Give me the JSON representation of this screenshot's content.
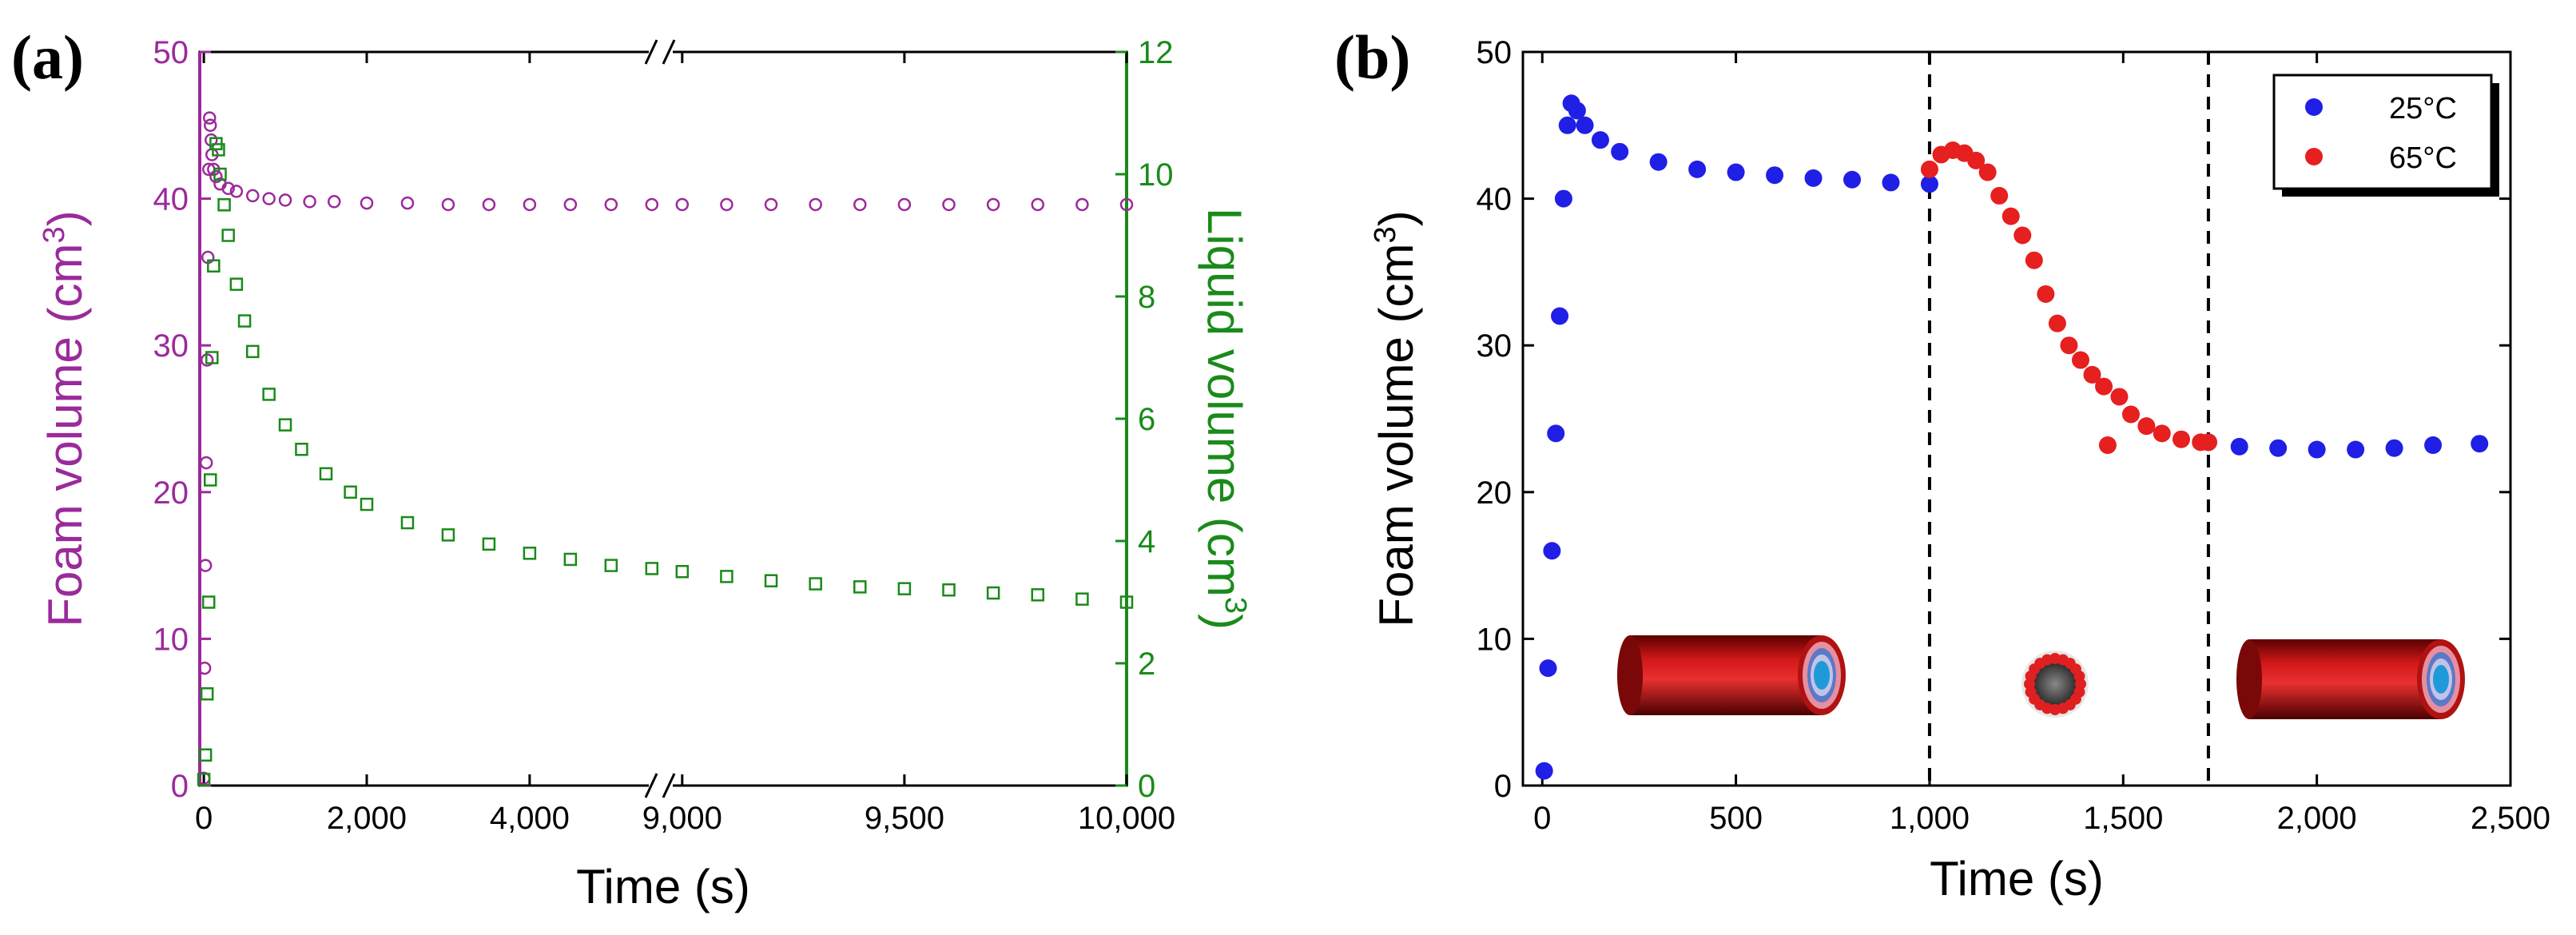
{
  "chart_data": [
    {
      "panel": "(a)",
      "type": "scatter",
      "xlabel": "Time (s)",
      "ylabel_left": "Foam volume (cm",
      "ylabel_left_sup": "3",
      "ylabel_left_close": ")",
      "ylabel_right": "Liquid volume  (cm",
      "ylabel_right_sup": "3",
      "ylabel_right_close": ")",
      "x_segments": [
        {
          "range": [
            -50,
            5600
          ],
          "ticks": [
            0,
            2000,
            4000
          ],
          "tick_labels": [
            "0",
            "2,000",
            "4,000"
          ]
        },
        {
          "range": [
            8950,
            10000
          ],
          "ticks": [
            9000,
            9500,
            10000
          ],
          "tick_labels": [
            "9,000",
            "9,500",
            "10,000"
          ]
        }
      ],
      "y_left": {
        "range": [
          0,
          50
        ],
        "ticks": [
          0,
          10,
          20,
          30,
          40,
          50
        ],
        "tick_labels": [
          "0",
          "10",
          "20",
          "30",
          "40",
          "50"
        ],
        "color": "#9b2a9b"
      },
      "y_right": {
        "range": [
          0,
          12
        ],
        "ticks": [
          0,
          2,
          4,
          6,
          8,
          10,
          12
        ],
        "tick_labels": [
          "0",
          "2",
          "4",
          "6",
          "8",
          "10",
          "12"
        ],
        "color": "#1a8a1a"
      },
      "series": [
        {
          "name": "Foam volume",
          "axis": "left",
          "marker": "circle-open",
          "color": "#9b2a9b",
          "x": [
            0,
            10,
            20,
            30,
            40,
            50,
            60,
            70,
            80,
            90,
            100,
            120,
            150,
            200,
            300,
            400,
            600,
            800,
            1000,
            1300,
            1600,
            2000,
            2500,
            3000,
            3500,
            4000,
            4500,
            5000,
            5500,
            9000,
            9100,
            9200,
            9300,
            9400,
            9500,
            9600,
            9700,
            9800,
            9900,
            10000
          ],
          "values": [
            0.5,
            8,
            15,
            22,
            29,
            36,
            42,
            45.5,
            45,
            44,
            43,
            42,
            41.5,
            41,
            40.7,
            40.5,
            40.2,
            40,
            39.9,
            39.8,
            39.8,
            39.7,
            39.7,
            39.6,
            39.6,
            39.6,
            39.6,
            39.6,
            39.6,
            39.6,
            39.6,
            39.6,
            39.6,
            39.6,
            39.6,
            39.6,
            39.6,
            39.6,
            39.6,
            39.6
          ]
        },
        {
          "name": "Liquid volume",
          "axis": "right",
          "marker": "square-open",
          "color": "#1a8a1a",
          "x": [
            0,
            20,
            40,
            60,
            80,
            100,
            120,
            150,
            180,
            200,
            250,
            300,
            400,
            500,
            600,
            800,
            1000,
            1200,
            1500,
            1800,
            2000,
            2500,
            3000,
            3500,
            4000,
            4500,
            5000,
            5500,
            9000,
            9100,
            9200,
            9300,
            9400,
            9500,
            9600,
            9700,
            9800,
            9900,
            10000
          ],
          "values": [
            0.1,
            0.5,
            1.5,
            3,
            5,
            7,
            8.5,
            10.5,
            10.4,
            10,
            9.5,
            9,
            8.2,
            7.6,
            7.1,
            6.4,
            5.9,
            5.5,
            5.1,
            4.8,
            4.6,
            4.3,
            4.1,
            3.95,
            3.8,
            3.7,
            3.6,
            3.55,
            3.5,
            3.42,
            3.35,
            3.3,
            3.25,
            3.22,
            3.2,
            3.15,
            3.12,
            3.05,
            3.0
          ]
        }
      ]
    },
    {
      "panel": "(b)",
      "type": "scatter",
      "xlabel": "Time (s)",
      "ylabel": "Foam volume (cm",
      "ylabel_sup": "3",
      "ylabel_close": ")",
      "x": {
        "range": [
          -50,
          2500
        ],
        "ticks": [
          0,
          500,
          1000,
          1500,
          2000,
          2500
        ],
        "tick_labels": [
          "0",
          "500",
          "1,000",
          "1,500",
          "2,000",
          "2,500"
        ]
      },
      "y": {
        "range": [
          0,
          50
        ],
        "ticks": [
          0,
          10,
          20,
          30,
          40,
          50
        ],
        "tick_labels": [
          "0",
          "10",
          "20",
          "30",
          "40",
          "50"
        ]
      },
      "vlines_x": [
        1000,
        1720
      ],
      "legend_position": "top-right",
      "series": [
        {
          "name": "25°C",
          "color": "#1f1fe6",
          "x": [
            5,
            15,
            25,
            35,
            45,
            55,
            65,
            75,
            90,
            110,
            150,
            200,
            300,
            400,
            500,
            600,
            700,
            800,
            900,
            1000,
            1720,
            1800,
            1900,
            2000,
            2100,
            2200,
            2300,
            2420
          ],
          "values": [
            1,
            8,
            16,
            24,
            32,
            40,
            45,
            46.5,
            46,
            45,
            44,
            43.2,
            42.5,
            42,
            41.8,
            41.6,
            41.4,
            41.3,
            41.1,
            41,
            23.4,
            23.1,
            23,
            22.9,
            22.9,
            23,
            23.2,
            23.3
          ]
        },
        {
          "name": "65°C",
          "color": "#e61f1f",
          "x": [
            1000,
            1030,
            1060,
            1090,
            1120,
            1150,
            1180,
            1210,
            1240,
            1270,
            1300,
            1330,
            1360,
            1390,
            1420,
            1450,
            1460,
            1490,
            1520,
            1560,
            1600,
            1650,
            1700,
            1720
          ],
          "values": [
            42,
            43,
            43.3,
            43.1,
            42.6,
            41.8,
            40.2,
            38.8,
            37.5,
            35.8,
            33.5,
            31.5,
            30,
            29,
            28,
            27.2,
            23.2,
            26.5,
            25.3,
            24.5,
            24,
            23.6,
            23.4,
            23.4
          ]
        }
      ]
    }
  ]
}
